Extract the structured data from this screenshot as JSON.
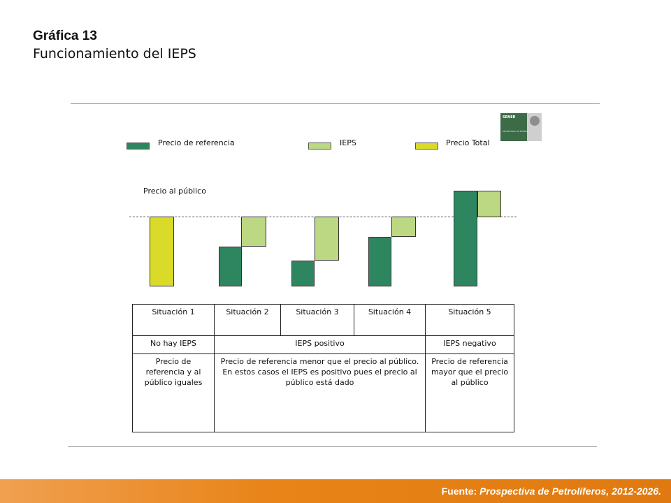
{
  "header": {
    "title": "Gráfica 13",
    "subtitle": "Funcionamiento del IEPS"
  },
  "logo": {
    "text": "SENER",
    "subtext": "SECRETARÍA DE ENERGÍA"
  },
  "legend": [
    {
      "label": "Precio de referencia",
      "color": "#2e8660"
    },
    {
      "label": "IEPS",
      "color": "#bcd882"
    },
    {
      "label": "Precio Total",
      "color": "#d9db28"
    }
  ],
  "diagram": {
    "reference_line_label": "Precio al público"
  },
  "table": {
    "headers": [
      "Situación 1",
      "Situación 2",
      "Situación 3",
      "Situación 4",
      "Situación 5"
    ],
    "row1": {
      "col1": "No hay IEPS",
      "col2to4": "IEPS positivo",
      "col5": "IEPS negativo"
    },
    "row2": {
      "col1": "Precio de referencia y al público iguales",
      "col2to4": "Precio de referencia menor que el precio al público. En estos casos el IEPS es positivo pues el precio al público está dado",
      "col5": "Precio de referencia mayor que el precio al público"
    }
  },
  "footer": {
    "label": "Fuente:",
    "source": "Prospectiva de Petrolíferos, 2012-2026."
  }
}
